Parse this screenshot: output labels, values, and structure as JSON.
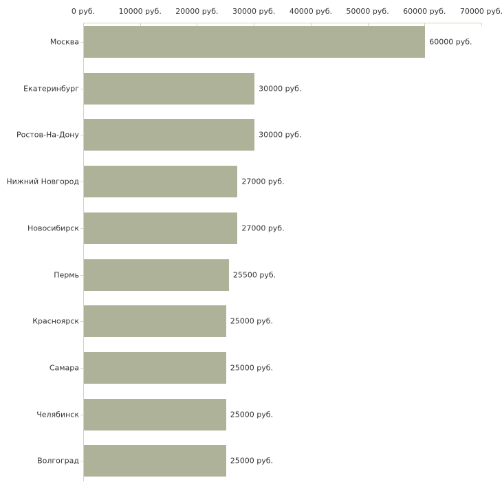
{
  "chart_data": {
    "type": "bar",
    "orientation": "horizontal",
    "title": "",
    "xlabel": "",
    "ylabel": "",
    "unit": "руб.",
    "xlim": [
      0,
      70000
    ],
    "x_ticks": [
      0,
      10000,
      20000,
      30000,
      40000,
      50000,
      60000,
      70000
    ],
    "x_tick_labels": [
      "0 руб.",
      "10000 руб.",
      "20000 руб.",
      "30000 руб.",
      "40000 руб.",
      "50000 руб.",
      "60000 руб.",
      "70000 руб."
    ],
    "categories": [
      "Москва",
      "Екатеринбург",
      "Ростов-На-Дону",
      "Нижний Новгород",
      "Новосибирск",
      "Пермь",
      "Красноярск",
      "Самара",
      "Челябинск",
      "Волгоград"
    ],
    "values": [
      60000,
      30000,
      30000,
      27000,
      27000,
      25500,
      25000,
      25000,
      25000,
      25000
    ],
    "value_labels": [
      "60000 руб.",
      "30000 руб.",
      "30000 руб.",
      "27000 руб.",
      "27000 руб.",
      "25500 руб.",
      "25000 руб.",
      "25000 руб.",
      "25000 руб.",
      "25000 руб."
    ],
    "grid": false,
    "legend": false,
    "bar_color": "#adb299",
    "axis_color": "#d6d3b4",
    "text_color": "#333333",
    "background_color": "#ffffff"
  }
}
